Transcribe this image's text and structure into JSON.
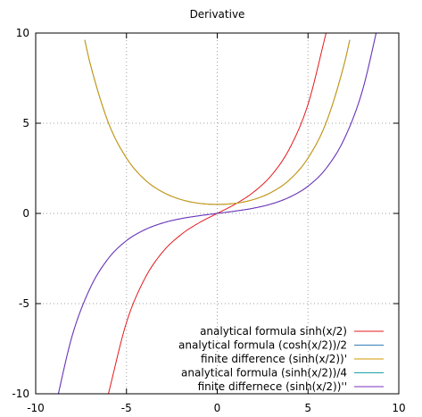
{
  "chart_data": {
    "type": "line",
    "title": "Derivative",
    "xlabel": "",
    "ylabel": "",
    "xlim": [
      -10,
      10
    ],
    "ylim": [
      -10,
      10
    ],
    "grid": true,
    "legend_position": "bottom-right",
    "xticks": [
      -10,
      -5,
      0,
      5,
      10
    ],
    "yticks": [
      -10,
      -5,
      0,
      5,
      10
    ],
    "xtick_labels": [
      "-10",
      "-5",
      "0",
      "5",
      "10"
    ],
    "ytick_labels": [
      "-10",
      "-5",
      "0",
      "5",
      "10"
    ],
    "series": [
      {
        "name": "analytical formula sinh(x/2)",
        "color": "#e41a1c",
        "x": [
          -6,
          -5,
          -4,
          -3,
          -2,
          -1,
          0,
          1,
          2,
          3,
          4,
          5,
          6
        ],
        "y": [
          -10.02,
          -6.05,
          -3.63,
          -2.13,
          -1.18,
          -0.52,
          0,
          0.52,
          1.18,
          2.13,
          3.63,
          6.05,
          10.02
        ]
      },
      {
        "name": "analytical formula (cosh(x/2))/2",
        "color": "#377eb8",
        "x": [
          -7.3,
          -7,
          -6,
          -5,
          -4,
          -3,
          -2,
          -1,
          0,
          1,
          2,
          3,
          4,
          5,
          6,
          7,
          7.3
        ],
        "y": [
          9.62,
          8.31,
          5.04,
          3.07,
          1.88,
          1.18,
          0.77,
          0.56,
          0.5,
          0.56,
          0.77,
          1.18,
          1.88,
          3.07,
          5.04,
          8.31,
          9.62
        ]
      },
      {
        "name": "finite difference  (sinh(x/2))'",
        "color": "#d49a00",
        "x": [
          -7.3,
          -7,
          -6,
          -5,
          -4,
          -3,
          -2,
          -1,
          0,
          1,
          2,
          3,
          4,
          5,
          6,
          7,
          7.3
        ],
        "y": [
          9.62,
          8.31,
          5.04,
          3.07,
          1.88,
          1.18,
          0.77,
          0.56,
          0.5,
          0.56,
          0.77,
          1.18,
          1.88,
          3.07,
          5.04,
          8.31,
          9.62
        ]
      },
      {
        "name": "analytical formula (sinh(x/2))/4",
        "color": "#1fa0a8",
        "x": [
          -8.9,
          -8,
          -7,
          -6,
          -5,
          -4,
          -3,
          -2,
          -1,
          0,
          1,
          2,
          3,
          4,
          5,
          6,
          7,
          8,
          8.9
        ],
        "y": [
          -10.65,
          -6.82,
          -4.14,
          -2.5,
          -1.51,
          -0.91,
          -0.53,
          -0.29,
          -0.13,
          0,
          0.13,
          0.29,
          0.53,
          0.91,
          1.51,
          2.5,
          4.14,
          6.82,
          10.65
        ]
      },
      {
        "name": "finite differnece  (sinh(x/2))''",
        "color": "#7b2fbe",
        "x": [
          -8.9,
          -8,
          -7,
          -6,
          -5,
          -4,
          -3,
          -2,
          -1,
          0,
          1,
          2,
          3,
          4,
          5,
          6,
          7,
          8,
          8.9
        ],
        "y": [
          -10.65,
          -6.82,
          -4.14,
          -2.5,
          -1.51,
          -0.91,
          -0.53,
          -0.29,
          -0.13,
          0,
          0.13,
          0.29,
          0.53,
          0.91,
          1.51,
          2.5,
          4.14,
          6.82,
          10.65
        ]
      }
    ]
  }
}
